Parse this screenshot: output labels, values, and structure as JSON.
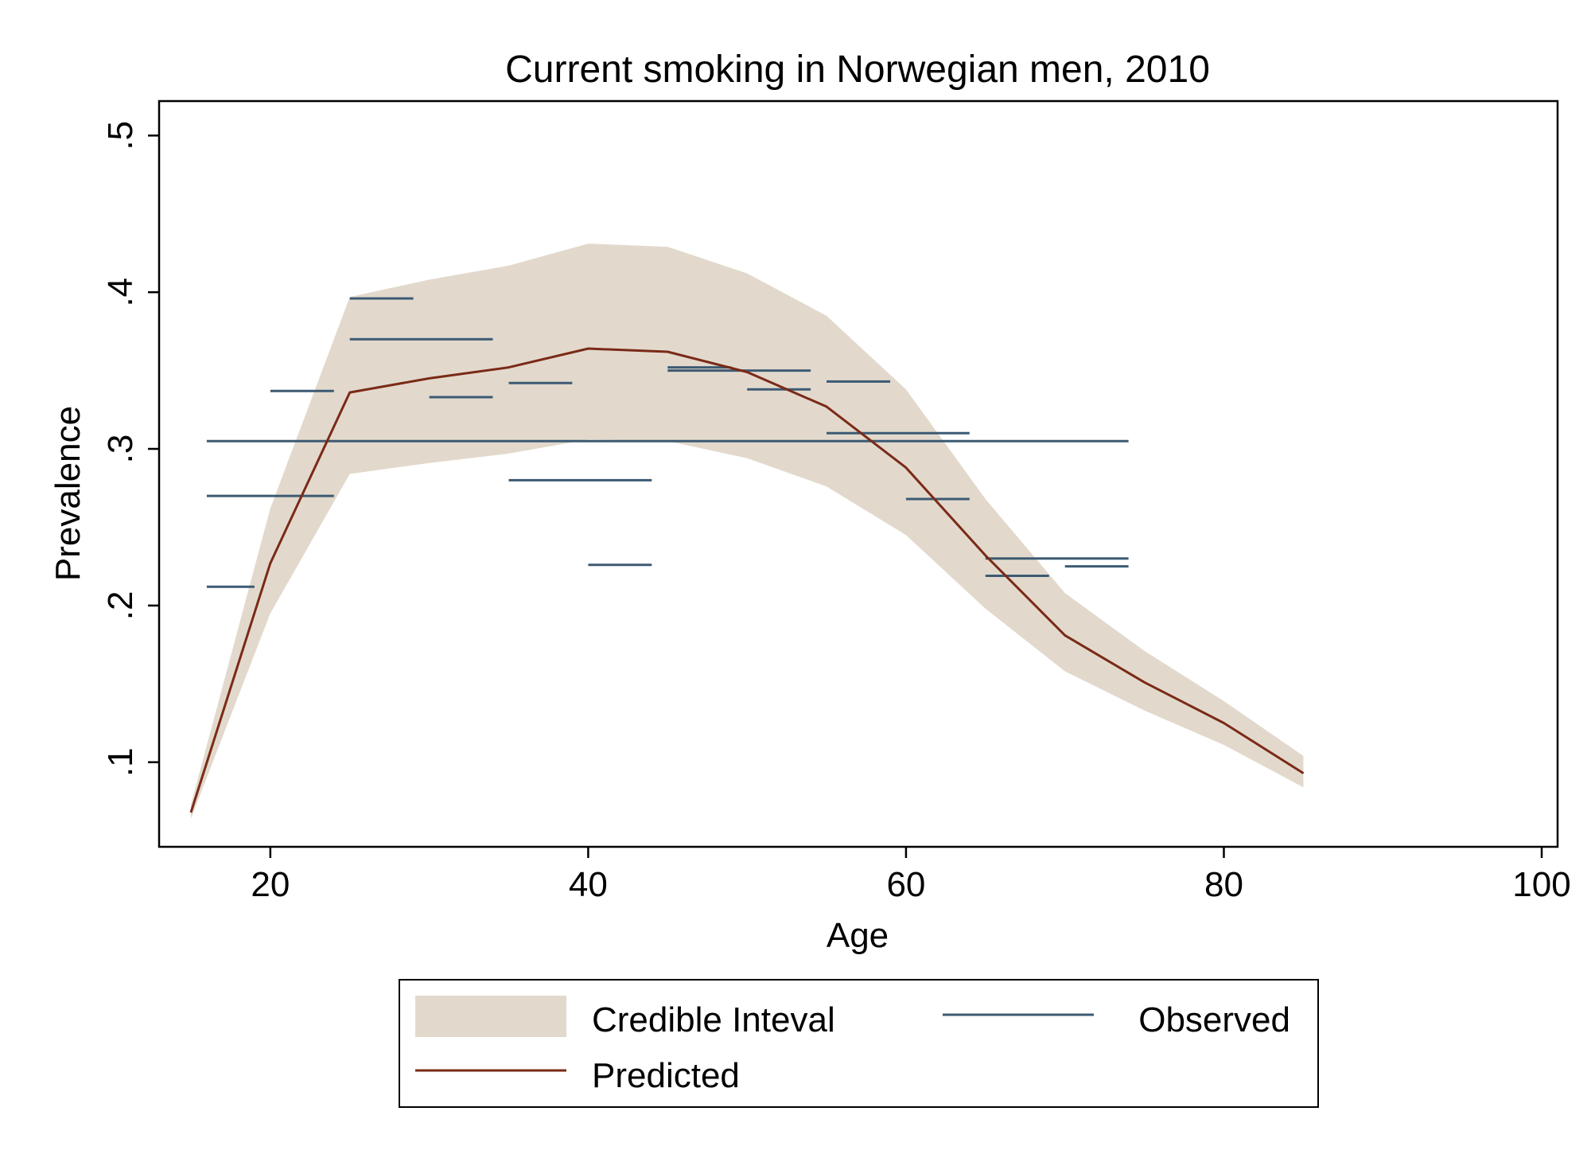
{
  "chart_data": {
    "type": "line",
    "title": "Current smoking in Norwegian men, 2010",
    "xlabel": "Age",
    "ylabel": "Prevalence",
    "xlim": [
      13,
      101
    ],
    "ylim": [
      0.046,
      0.522
    ],
    "xticks": [
      {
        "value": 20,
        "label": "20"
      },
      {
        "value": 40,
        "label": "40"
      },
      {
        "value": 60,
        "label": "60"
      },
      {
        "value": 80,
        "label": "80"
      },
      {
        "value": 100,
        "label": "100"
      }
    ],
    "yticks": [
      {
        "value": 0.1,
        "label": ".1"
      },
      {
        "value": 0.2,
        "label": ".2"
      },
      {
        "value": 0.3,
        "label": ".3"
      },
      {
        "value": 0.4,
        "label": ".4"
      },
      {
        "value": 0.5,
        "label": ".5"
      }
    ],
    "grid": false,
    "legend_position": "bottom",
    "colors": {
      "band": "#e2d9cc",
      "predicted": "#7a2a17",
      "observed": "#3d5a73"
    },
    "series": [
      {
        "name": "Credible Inteval",
        "kind": "band",
        "x": [
          15,
          20,
          25,
          30,
          35,
          40,
          45,
          50,
          55,
          60,
          65,
          70,
          75,
          80,
          85
        ],
        "lower": [
          0.064,
          0.195,
          0.284,
          0.291,
          0.297,
          0.306,
          0.305,
          0.294,
          0.276,
          0.245,
          0.198,
          0.158,
          0.133,
          0.111,
          0.084
        ],
        "upper": [
          0.073,
          0.262,
          0.397,
          0.408,
          0.417,
          0.431,
          0.429,
          0.412,
          0.385,
          0.338,
          0.268,
          0.208,
          0.171,
          0.139,
          0.104
        ]
      },
      {
        "name": "Predicted",
        "kind": "line",
        "x": [
          15,
          20,
          25,
          30,
          35,
          40,
          45,
          50,
          55,
          60,
          65,
          70,
          75,
          80,
          85
        ],
        "y": [
          0.068,
          0.227,
          0.336,
          0.345,
          0.352,
          0.364,
          0.362,
          0.349,
          0.327,
          0.288,
          0.232,
          0.181,
          0.151,
          0.125,
          0.093
        ]
      },
      {
        "name": "Observed",
        "kind": "segments",
        "segments": [
          {
            "x0": 16,
            "x1": 74,
            "y": 0.305
          },
          {
            "x0": 16,
            "x1": 24,
            "y": 0.27
          },
          {
            "x0": 16,
            "x1": 19,
            "y": 0.212
          },
          {
            "x0": 20,
            "x1": 24,
            "y": 0.337
          },
          {
            "x0": 25,
            "x1": 29,
            "y": 0.396
          },
          {
            "x0": 25,
            "x1": 34,
            "y": 0.37
          },
          {
            "x0": 30,
            "x1": 34,
            "y": 0.333
          },
          {
            "x0": 35,
            "x1": 39,
            "y": 0.342
          },
          {
            "x0": 35,
            "x1": 44,
            "y": 0.28
          },
          {
            "x0": 40,
            "x1": 44,
            "y": 0.226
          },
          {
            "x0": 45,
            "x1": 49,
            "y": 0.352
          },
          {
            "x0": 45,
            "x1": 54,
            "y": 0.35
          },
          {
            "x0": 50,
            "x1": 54,
            "y": 0.338
          },
          {
            "x0": 55,
            "x1": 59,
            "y": 0.343
          },
          {
            "x0": 55,
            "x1": 64,
            "y": 0.31
          },
          {
            "x0": 60,
            "x1": 64,
            "y": 0.268
          },
          {
            "x0": 65,
            "x1": 74,
            "y": 0.23
          },
          {
            "x0": 65,
            "x1": 69,
            "y": 0.219
          },
          {
            "x0": 70,
            "x1": 74,
            "y": 0.225
          }
        ]
      }
    ],
    "legend": [
      {
        "label": "Credible Inteval",
        "kind": "band"
      },
      {
        "label": "Observed",
        "kind": "line-observed"
      },
      {
        "label": "Predicted",
        "kind": "line-predicted"
      }
    ]
  }
}
